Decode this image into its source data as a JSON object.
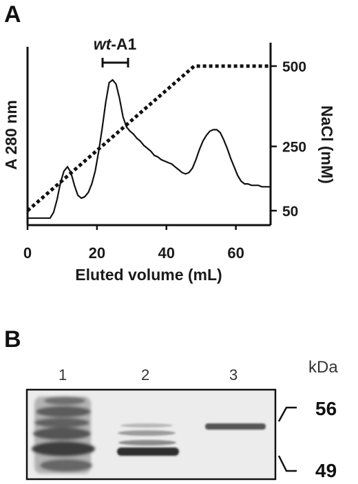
{
  "panel_a": {
    "letter": "A",
    "peak_label_italic": "wt",
    "peak_label_rest": "-A1",
    "chart_data": {
      "type": "line",
      "xlabel": "Eluted volume (mL)",
      "ylabel": "A 280 nm",
      "y2label": "NaCl (mM)",
      "xlim": [
        0,
        70
      ],
      "xticks": [
        0,
        20,
        40,
        60
      ],
      "y2lim": [
        0,
        540
      ],
      "y2ticks": [
        50,
        250,
        500
      ],
      "grid": false,
      "series": [
        {
          "style": "solid",
          "axis": "left",
          "x": [
            0,
            6.5,
            7.5,
            8.5,
            9.5,
            10.5,
            11.5,
            12.5,
            13.5,
            14.5,
            15.5,
            16.5,
            17.5,
            18.5,
            19.5,
            20.5,
            21.5,
            22.5,
            23.5,
            24.5,
            25.5,
            26.5,
            27.5,
            28.5,
            29.5,
            30.5,
            31.5,
            32.5,
            33.5,
            34.5,
            35.5,
            36.5,
            37.5,
            38.5,
            39.5,
            40.5,
            41.5,
            42.5,
            43.5,
            44.5,
            45.5,
            46.5,
            47.5,
            48.5,
            49.5,
            50.5,
            51.5,
            52.5,
            53.5,
            54.5,
            55.5,
            56.5,
            57.5,
            58.5,
            59.5,
            60.5,
            61.5,
            62.5,
            63.5,
            64.5,
            65.5,
            66.5,
            67.5,
            68.5,
            70
          ],
          "y": [
            0.03,
            0.03,
            0.07,
            0.16,
            0.28,
            0.36,
            0.39,
            0.35,
            0.26,
            0.19,
            0.17,
            0.18,
            0.21,
            0.27,
            0.36,
            0.5,
            0.66,
            0.84,
            0.98,
            1.0,
            0.97,
            0.87,
            0.74,
            0.67,
            0.64,
            0.62,
            0.59,
            0.57,
            0.54,
            0.52,
            0.5,
            0.47,
            0.46,
            0.44,
            0.43,
            0.42,
            0.41,
            0.39,
            0.37,
            0.35,
            0.34,
            0.35,
            0.38,
            0.44,
            0.51,
            0.57,
            0.61,
            0.64,
            0.65,
            0.65,
            0.63,
            0.58,
            0.52,
            0.45,
            0.39,
            0.33,
            0.29,
            0.27,
            0.27,
            0.26,
            0.26,
            0.26,
            0.25,
            0.25,
            0.25
          ]
        },
        {
          "style": "dotted",
          "axis": "right",
          "x": [
            0,
            48,
            70
          ],
          "y": [
            50,
            500,
            500
          ]
        }
      ]
    }
  },
  "panel_b": {
    "letter": "B",
    "lanes": [
      "1",
      "2",
      "3"
    ],
    "unit": "kDa",
    "markers": [
      "56",
      "49"
    ]
  }
}
